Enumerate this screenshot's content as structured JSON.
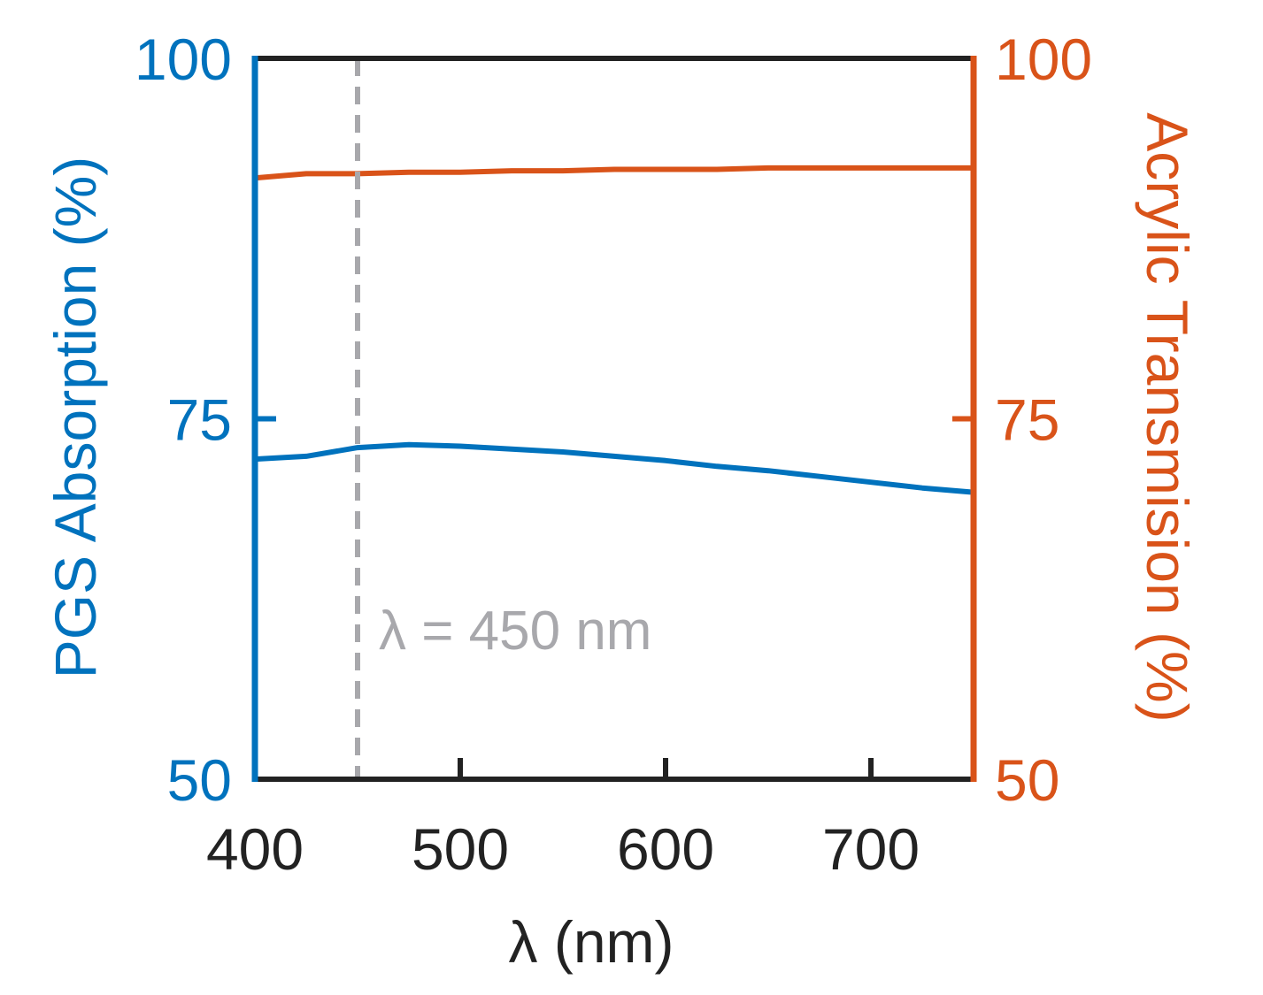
{
  "chart_data": {
    "type": "line",
    "title": "",
    "xlabel": "λ (nm)",
    "ylabel_left": "PGS Absorption (%)",
    "ylabel_right": "Acrylic Transmision (%)",
    "xlim": [
      400,
      750
    ],
    "ylim_left": [
      50,
      100
    ],
    "ylim_right": [
      50,
      100
    ],
    "x_ticks": [
      "400",
      "500",
      "600",
      "700"
    ],
    "y_ticks_left": [
      "50",
      "75",
      "100"
    ],
    "y_ticks_right": [
      "50",
      "75",
      "100"
    ],
    "grid": false,
    "legend": "none",
    "colors": {
      "left_axis": "#0072BD",
      "right_axis": "#D95319",
      "frame": "#222222",
      "annotation": "#A8A8AC"
    },
    "annotation": {
      "text": "λ = 450 nm",
      "x": 450
    },
    "series": [
      {
        "axis": "left",
        "color": "#0072BD",
        "x": [
          400,
          425,
          450,
          475,
          500,
          525,
          550,
          575,
          600,
          625,
          650,
          675,
          700,
          725,
          750
        ],
        "values": [
          72.2,
          72.4,
          73.0,
          73.2,
          73.1,
          72.9,
          72.7,
          72.4,
          72.1,
          71.7,
          71.4,
          71.0,
          70.6,
          70.2,
          69.9
        ]
      },
      {
        "axis": "right",
        "color": "#D95319",
        "x": [
          400,
          425,
          450,
          475,
          500,
          525,
          550,
          575,
          600,
          625,
          650,
          675,
          700,
          725,
          750
        ],
        "values": [
          91.7,
          92.0,
          92.0,
          92.1,
          92.1,
          92.2,
          92.2,
          92.3,
          92.3,
          92.3,
          92.4,
          92.4,
          92.4,
          92.4,
          92.4
        ]
      }
    ]
  }
}
